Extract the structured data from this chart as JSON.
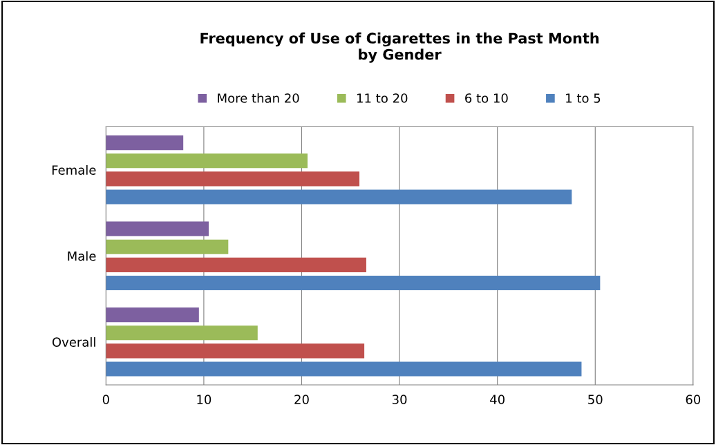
{
  "chart_data": {
    "type": "bar",
    "orientation": "horizontal",
    "title": "Frequency of Use of Cigarettes in the Past Month\nby Gender",
    "categories": [
      "Female",
      "Male",
      "Overall"
    ],
    "series": [
      {
        "name": "More than 20",
        "color": "#7d60a0",
        "values": [
          7.9,
          10.5,
          9.5
        ]
      },
      {
        "name": "11 to 20",
        "color": "#9bbb59",
        "values": [
          20.6,
          12.5,
          15.5
        ]
      },
      {
        "name": "6 to 10",
        "color": "#c0504d",
        "values": [
          25.9,
          26.6,
          26.4
        ]
      },
      {
        "name": "1 to 5",
        "color": "#4f81bd",
        "values": [
          47.6,
          50.5,
          48.6
        ]
      }
    ],
    "xlim": [
      0,
      60
    ],
    "xticks": [
      0,
      10,
      20,
      30,
      40,
      50,
      60
    ],
    "grid": "x",
    "legend": "top"
  }
}
